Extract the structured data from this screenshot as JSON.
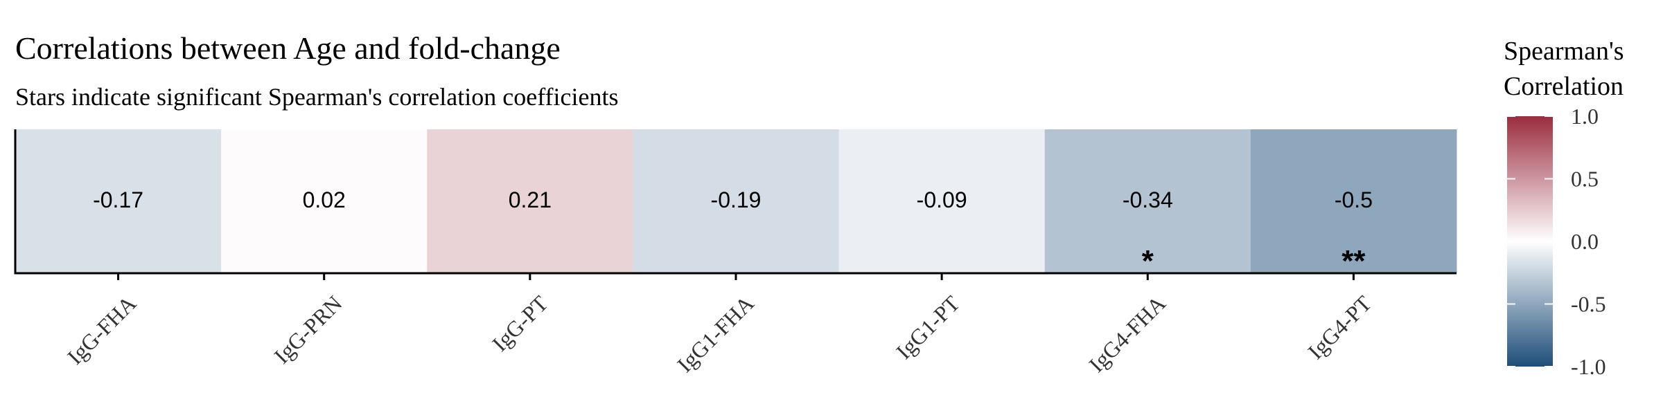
{
  "chart_data": {
    "type": "heatmap",
    "title": "Correlations between Age and fold-change",
    "subtitle": "Stars indicate significant Spearman's correlation coefficients",
    "categories": [
      "IgG-FHA",
      "IgG-PRN",
      "IgG-PT",
      "IgG1-FHA",
      "IgG1-PT",
      "IgG4-FHA",
      "IgG4-PT"
    ],
    "values": [
      -0.17,
      0.02,
      0.21,
      -0.19,
      -0.09,
      -0.34,
      -0.5
    ],
    "value_labels": [
      "-0.17",
      "0.02",
      "0.21",
      "-0.19",
      "-0.09",
      "-0.34",
      "-0.5"
    ],
    "significance": [
      "",
      "",
      "",
      "",
      "",
      "*",
      "**"
    ],
    "legend": {
      "title_lines": [
        "Spearman's",
        "Correlation"
      ],
      "ticks": [
        1.0,
        0.5,
        0.0,
        -0.5,
        -1.0
      ],
      "tick_labels": [
        "1.0",
        "0.5",
        "0.0",
        "-0.5",
        "-1.0"
      ],
      "range": [
        -1,
        1
      ],
      "placement": "right"
    },
    "colors": {
      "low": "#1f4e7a",
      "mid": "#ffffff",
      "high": "#9b2d3f"
    },
    "grid": false
  }
}
